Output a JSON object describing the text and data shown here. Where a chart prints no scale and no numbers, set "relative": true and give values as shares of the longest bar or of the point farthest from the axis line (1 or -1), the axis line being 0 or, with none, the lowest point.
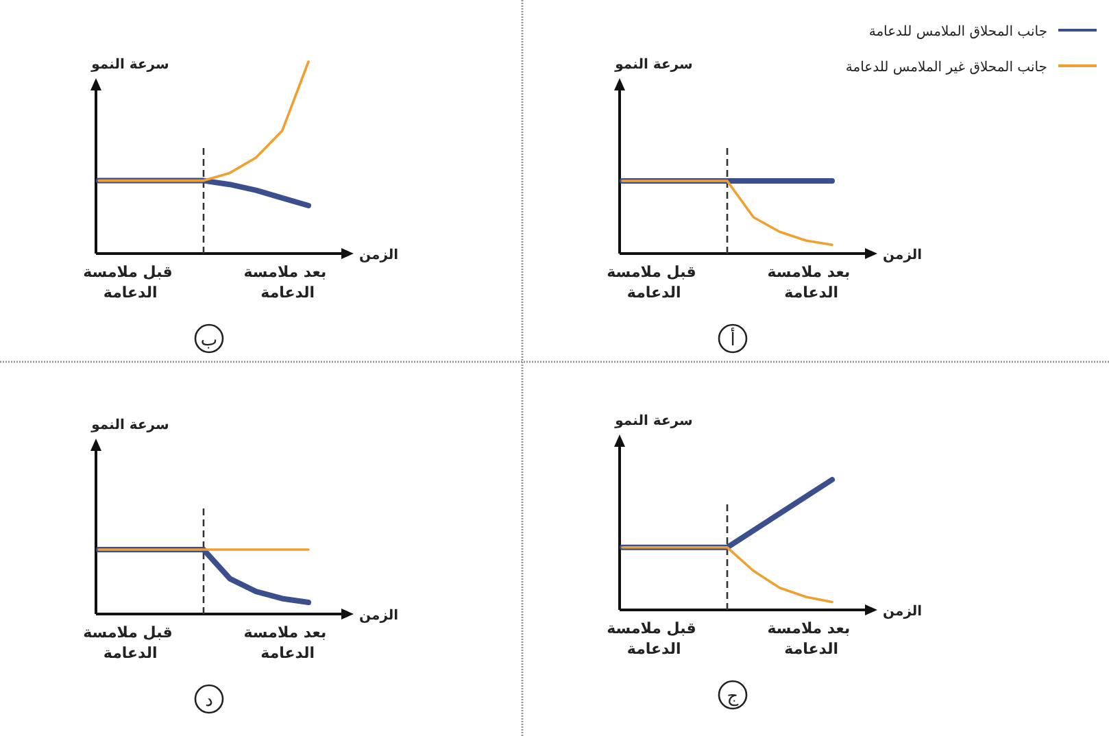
{
  "chart_data": [
    {
      "type": "line",
      "relative": true,
      "title": "أ",
      "xlabel": "الزمن",
      "ylabel": "سرعة النمو",
      "legend": "top right",
      "categories": [
        null,
        "قبل ملامسة الدعامة",
        null,
        null,
        null,
        null,
        null,
        "بعد ملامسة الدعامة",
        null
      ],
      "series": [
        {
          "name": "جانب المحلاق الملامس للدعامة",
          "color": "#3b4f8c",
          "values": [
            1,
            1,
            1,
            1,
            1,
            1,
            1,
            1,
            1
          ]
        },
        {
          "name": "جانب المحلاق غير الملامس للدعامة",
          "color": "#f0a030",
          "values": [
            1,
            1,
            1,
            1,
            1,
            0.5,
            0.3,
            0.18,
            0.12
          ]
        }
      ]
    },
    {
      "type": "line",
      "relative": true,
      "title": "ب",
      "xlabel": "الزمن",
      "ylabel": "سرعة النمو",
      "categories": [
        null,
        "قبل ملامسة الدعامة",
        null,
        null,
        null,
        null,
        null,
        "بعد ملامسة الدعامة",
        null
      ],
      "series": [
        {
          "color": "#3b4f8c",
          "values": [
            0.38,
            0.38,
            0.38,
            0.38,
            0.38,
            0.36,
            0.33,
            0.29,
            0.25
          ]
        },
        {
          "color": "#f0a030",
          "values": [
            0.38,
            0.38,
            0.38,
            0.38,
            0.38,
            0.42,
            0.5,
            0.64,
            1
          ]
        }
      ]
    },
    {
      "type": "line",
      "relative": true,
      "title": "ج",
      "xlabel": "الزمن",
      "ylabel": "سرعة النمو",
      "categories": [
        null,
        "قبل ملامسة الدعامة",
        null,
        null,
        null,
        null,
        null,
        "بعد ملامسة الدعامة",
        null
      ],
      "series": [
        {
          "color": "#3b4f8c",
          "values": [
            0.48,
            0.48,
            0.48,
            0.48,
            0.48,
            0.61,
            0.74,
            0.87,
            1
          ]
        },
        {
          "color": "#f0a030",
          "values": [
            0.48,
            0.48,
            0.48,
            0.48,
            0.48,
            0.3,
            0.17,
            0.1,
            0.06
          ]
        }
      ]
    },
    {
      "type": "line",
      "relative": true,
      "title": "د",
      "xlabel": "الزمن",
      "ylabel": "سرعة النمو",
      "categories": [
        null,
        "قبل ملامسة الدعامة",
        null,
        null,
        null,
        null,
        null,
        "بعد ملامسة الدعامة",
        null
      ],
      "series": [
        {
          "color": "#3b4f8c",
          "values": [
            1,
            1,
            1,
            1,
            1,
            0.55,
            0.35,
            0.24,
            0.18
          ]
        },
        {
          "color": "#f0a030",
          "values": [
            1,
            1,
            1,
            1,
            1,
            1,
            1,
            1,
            1
          ]
        }
      ]
    }
  ]
}
